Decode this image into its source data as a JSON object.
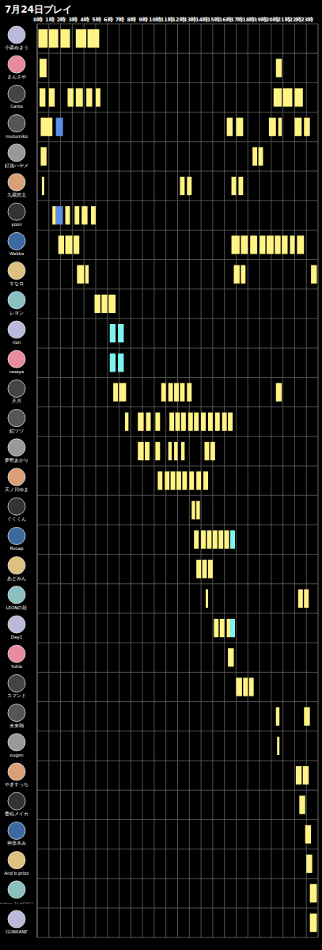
{
  "chart_data": {
    "type": "gantt",
    "title": "7月24日プレイ",
    "grid": true,
    "xlim": [
      0,
      24
    ],
    "xticks": [
      {
        "value": 0,
        "label": "0時"
      },
      {
        "value": 1,
        "label": "1時"
      },
      {
        "value": 2,
        "label": "2時"
      },
      {
        "value": 3,
        "label": "3時"
      },
      {
        "value": 4,
        "label": "4時"
      },
      {
        "value": 5,
        "label": "5時"
      },
      {
        "value": 6,
        "label": "6時"
      },
      {
        "value": 7,
        "label": "7時"
      },
      {
        "value": 8,
        "label": "8時"
      },
      {
        "value": 9,
        "label": "9時"
      },
      {
        "value": 10,
        "label": "10時"
      },
      {
        "value": 11,
        "label": "11時"
      },
      {
        "value": 12,
        "label": "12時"
      },
      {
        "value": 13,
        "label": "13時"
      },
      {
        "value": 14,
        "label": "14時"
      },
      {
        "value": 15,
        "label": "15時"
      },
      {
        "value": 16,
        "label": "16時"
      },
      {
        "value": 17,
        "label": "17時"
      },
      {
        "value": 18,
        "label": "18時"
      },
      {
        "value": 19,
        "label": "19時"
      },
      {
        "value": 20,
        "label": "20時"
      },
      {
        "value": 21,
        "label": "21時"
      },
      {
        "value": 22,
        "label": "22時"
      },
      {
        "value": 23,
        "label": "23時"
      }
    ],
    "rows": [
      {
        "name": "小森めまう",
        "blocks": [
          {
            "start": 0.1,
            "end": 0.9,
            "color": "#fff384"
          },
          {
            "start": 1.0,
            "end": 1.8,
            "color": "#fff384"
          },
          {
            "start": 2.0,
            "end": 2.8,
            "color": "#fff384"
          },
          {
            "start": 3.3,
            "end": 4.2,
            "color": "#fff384"
          },
          {
            "start": 4.3,
            "end": 5.3,
            "color": "#fff384"
          }
        ]
      },
      {
        "name": "まんさや",
        "blocks": [
          {
            "start": 0.2,
            "end": 0.8,
            "color": "#fff384"
          },
          {
            "start": 20.4,
            "end": 20.9,
            "color": "#fff384"
          }
        ]
      },
      {
        "name": "Caros",
        "blocks": [
          {
            "start": 0.2,
            "end": 0.7,
            "color": "#fff384"
          },
          {
            "start": 1.0,
            "end": 1.5,
            "color": "#fff384"
          },
          {
            "start": 2.6,
            "end": 3.1,
            "color": "#fff384"
          },
          {
            "start": 3.3,
            "end": 3.9,
            "color": "#fff384"
          },
          {
            "start": 4.2,
            "end": 4.7,
            "color": "#fff384"
          },
          {
            "start": 5.0,
            "end": 5.4,
            "color": "#fff384"
          },
          {
            "start": 20.2,
            "end": 20.9,
            "color": "#fff384"
          },
          {
            "start": 21.0,
            "end": 21.8,
            "color": "#fff384"
          },
          {
            "start": 22.0,
            "end": 22.7,
            "color": "#fff384"
          }
        ]
      },
      {
        "name": "mutumiko",
        "blocks": [
          {
            "start": 0.3,
            "end": 1.3,
            "color": "#fff384"
          },
          {
            "start": 1.6,
            "end": 2.2,
            "color": "#5b8fe6"
          },
          {
            "start": 16.2,
            "end": 16.7,
            "color": "#fff384"
          },
          {
            "start": 17.0,
            "end": 17.6,
            "color": "#fff384"
          },
          {
            "start": 19.8,
            "end": 20.4,
            "color": "#fff384"
          },
          {
            "start": 20.6,
            "end": 20.9,
            "color": "#fff384"
          },
          {
            "start": 22.0,
            "end": 22.6,
            "color": "#fff384"
          },
          {
            "start": 22.8,
            "end": 23.3,
            "color": "#fff384"
          }
        ]
      },
      {
        "name": "釘抜ハヤメ",
        "blocks": [
          {
            "start": 0.3,
            "end": 0.8,
            "color": "#fff384"
          },
          {
            "start": 18.4,
            "end": 18.8,
            "color": "#fff384"
          },
          {
            "start": 18.9,
            "end": 19.3,
            "color": "#fff384"
          }
        ]
      },
      {
        "name": "九蔵悠太",
        "blocks": [
          {
            "start": 0.4,
            "end": 0.6,
            "color": "#fff384"
          },
          {
            "start": 12.2,
            "end": 12.6,
            "color": "#fff384"
          },
          {
            "start": 12.8,
            "end": 13.2,
            "color": "#fff384"
          },
          {
            "start": 16.6,
            "end": 17.0,
            "color": "#fff384"
          },
          {
            "start": 17.2,
            "end": 17.6,
            "color": "#fff384"
          }
        ]
      },
      {
        "name": "yoon",
        "blocks": [
          {
            "start": 1.3,
            "end": 1.6,
            "color": "#fff384"
          },
          {
            "start": 1.6,
            "end": 2.2,
            "color": "#5b8fe6"
          },
          {
            "start": 2.4,
            "end": 2.8,
            "color": "#fff384"
          },
          {
            "start": 3.2,
            "end": 3.6,
            "color": "#fff384"
          },
          {
            "start": 3.8,
            "end": 4.3,
            "color": "#fff384"
          },
          {
            "start": 4.6,
            "end": 5.0,
            "color": "#fff384"
          }
        ]
      },
      {
        "name": "Wakka",
        "blocks": [
          {
            "start": 1.8,
            "end": 2.3,
            "color": "#fff384"
          },
          {
            "start": 2.4,
            "end": 3.0,
            "color": "#fff384"
          },
          {
            "start": 3.1,
            "end": 3.6,
            "color": "#fff384"
          },
          {
            "start": 16.6,
            "end": 17.3,
            "color": "#fff384"
          },
          {
            "start": 17.4,
            "end": 18.0,
            "color": "#fff384"
          },
          {
            "start": 18.2,
            "end": 18.8,
            "color": "#fff384"
          },
          {
            "start": 19.0,
            "end": 19.5,
            "color": "#fff384"
          },
          {
            "start": 19.6,
            "end": 20.2,
            "color": "#fff384"
          },
          {
            "start": 20.3,
            "end": 20.8,
            "color": "#fff384"
          },
          {
            "start": 20.9,
            "end": 21.4,
            "color": "#fff384"
          },
          {
            "start": 21.6,
            "end": 22.0,
            "color": "#fff384"
          },
          {
            "start": 22.2,
            "end": 22.8,
            "color": "#fff384"
          }
        ]
      },
      {
        "name": "すなロ",
        "blocks": [
          {
            "start": 3.4,
            "end": 4.0,
            "color": "#fff384"
          },
          {
            "start": 4.1,
            "end": 4.4,
            "color": "#fff384"
          },
          {
            "start": 16.8,
            "end": 17.3,
            "color": "#fff384"
          },
          {
            "start": 17.4,
            "end": 17.8,
            "color": "#fff384"
          },
          {
            "start": 23.4,
            "end": 23.9,
            "color": "#fff384"
          }
        ]
      },
      {
        "name": "レヨン",
        "blocks": [
          {
            "start": 4.9,
            "end": 5.4,
            "color": "#fff384"
          },
          {
            "start": 5.5,
            "end": 6.0,
            "color": "#fff384"
          },
          {
            "start": 6.1,
            "end": 6.7,
            "color": "#fff384"
          }
        ]
      },
      {
        "name": "rion",
        "blocks": [
          {
            "start": 6.2,
            "end": 6.7,
            "color": "#7ef2ee"
          },
          {
            "start": 6.9,
            "end": 7.4,
            "color": "#7ef2ee"
          }
        ]
      },
      {
        "name": "rasaya",
        "blocks": [
          {
            "start": 6.2,
            "end": 6.7,
            "color": "#7ef2ee"
          },
          {
            "start": 6.9,
            "end": 7.4,
            "color": "#7ef2ee"
          }
        ]
      },
      {
        "name": "天月",
        "blocks": [
          {
            "start": 6.5,
            "end": 6.9,
            "color": "#fff384"
          },
          {
            "start": 7.0,
            "end": 7.6,
            "color": "#fff384"
          },
          {
            "start": 10.6,
            "end": 11.0,
            "color": "#fff384"
          },
          {
            "start": 11.2,
            "end": 11.6,
            "color": "#fff384"
          },
          {
            "start": 11.7,
            "end": 12.1,
            "color": "#fff384"
          },
          {
            "start": 12.2,
            "end": 12.6,
            "color": "#fff384"
          },
          {
            "start": 12.8,
            "end": 13.2,
            "color": "#fff384"
          },
          {
            "start": 20.4,
            "end": 20.9,
            "color": "#fff384"
          }
        ]
      },
      {
        "name": "鏡ツツ",
        "blocks": [
          {
            "start": 7.5,
            "end": 7.8,
            "color": "#fff384"
          },
          {
            "start": 8.6,
            "end": 9.1,
            "color": "#fff384"
          },
          {
            "start": 9.3,
            "end": 9.7,
            "color": "#fff384"
          },
          {
            "start": 10.1,
            "end": 10.5,
            "color": "#fff384"
          },
          {
            "start": 11.3,
            "end": 11.7,
            "color": "#fff384"
          },
          {
            "start": 11.8,
            "end": 12.2,
            "color": "#fff384"
          },
          {
            "start": 12.3,
            "end": 12.7,
            "color": "#fff384"
          },
          {
            "start": 12.9,
            "end": 13.3,
            "color": "#fff384"
          },
          {
            "start": 13.4,
            "end": 13.8,
            "color": "#fff384"
          },
          {
            "start": 14.0,
            "end": 14.4,
            "color": "#fff384"
          },
          {
            "start": 14.6,
            "end": 15.0,
            "color": "#fff384"
          },
          {
            "start": 15.2,
            "end": 15.6,
            "color": "#fff384"
          },
          {
            "start": 15.8,
            "end": 16.2,
            "color": "#fff384"
          },
          {
            "start": 16.3,
            "end": 16.7,
            "color": "#fff384"
          }
        ]
      },
      {
        "name": "夢野あかり",
        "blocks": [
          {
            "start": 8.6,
            "end": 9.1,
            "color": "#fff384"
          },
          {
            "start": 9.2,
            "end": 9.6,
            "color": "#fff384"
          },
          {
            "start": 10.1,
            "end": 10.5,
            "color": "#fff384"
          },
          {
            "start": 11.2,
            "end": 11.5,
            "color": "#fff384"
          },
          {
            "start": 11.7,
            "end": 12.0,
            "color": "#fff384"
          },
          {
            "start": 12.3,
            "end": 12.6,
            "color": "#fff384"
          },
          {
            "start": 14.3,
            "end": 14.7,
            "color": "#fff384"
          },
          {
            "start": 14.8,
            "end": 15.2,
            "color": "#fff384"
          }
        ]
      },
      {
        "name": "天ノ川ゆま",
        "blocks": [
          {
            "start": 10.3,
            "end": 10.7,
            "color": "#fff384"
          },
          {
            "start": 10.9,
            "end": 11.3,
            "color": "#fff384"
          },
          {
            "start": 11.4,
            "end": 11.8,
            "color": "#fff384"
          },
          {
            "start": 11.9,
            "end": 12.3,
            "color": "#fff384"
          },
          {
            "start": 12.4,
            "end": 12.8,
            "color": "#fff384"
          },
          {
            "start": 13.0,
            "end": 13.4,
            "color": "#fff384"
          },
          {
            "start": 13.6,
            "end": 14.0,
            "color": "#fff384"
          },
          {
            "start": 14.2,
            "end": 14.6,
            "color": "#fff384"
          }
        ]
      },
      {
        "name": "ぐくくん",
        "blocks": [
          {
            "start": 13.2,
            "end": 13.5,
            "color": "#fff384"
          },
          {
            "start": 13.6,
            "end": 13.9,
            "color": "#fff384"
          }
        ]
      },
      {
        "name": "Recap",
        "blocks": [
          {
            "start": 13.4,
            "end": 13.8,
            "color": "#fff384"
          },
          {
            "start": 14.0,
            "end": 14.4,
            "color": "#fff384"
          },
          {
            "start": 14.5,
            "end": 14.9,
            "color": "#fff384"
          },
          {
            "start": 15.0,
            "end": 15.4,
            "color": "#fff384"
          },
          {
            "start": 15.5,
            "end": 15.9,
            "color": "#fff384"
          },
          {
            "start": 16.0,
            "end": 16.4,
            "color": "#fff384"
          },
          {
            "start": 16.5,
            "end": 16.9,
            "color": "#7ef2ee"
          }
        ]
      },
      {
        "name": "あどみん",
        "blocks": [
          {
            "start": 13.6,
            "end": 14.0,
            "color": "#fff384"
          },
          {
            "start": 14.1,
            "end": 14.5,
            "color": "#fff384"
          },
          {
            "start": 14.6,
            "end": 15.0,
            "color": "#fff384"
          }
        ]
      },
      {
        "name": "LEONの祖",
        "blocks": [
          {
            "start": 14.4,
            "end": 14.6,
            "color": "#fff384"
          },
          {
            "start": 22.3,
            "end": 22.7,
            "color": "#fff384"
          },
          {
            "start": 22.8,
            "end": 23.2,
            "color": "#fff384"
          }
        ]
      },
      {
        "name": "Day1",
        "blocks": [
          {
            "start": 15.1,
            "end": 15.5,
            "color": "#fff384"
          },
          {
            "start": 15.6,
            "end": 16.0,
            "color": "#fff384"
          },
          {
            "start": 16.2,
            "end": 16.5,
            "color": "#fff384"
          },
          {
            "start": 16.5,
            "end": 16.9,
            "color": "#7ef2ee"
          }
        ]
      },
      {
        "name": "Yukio",
        "blocks": [
          {
            "start": 16.3,
            "end": 16.8,
            "color": "#fff384"
          }
        ]
      },
      {
        "name": "スマンド",
        "blocks": [
          {
            "start": 17.0,
            "end": 17.5,
            "color": "#fff384"
          },
          {
            "start": 17.6,
            "end": 18.0,
            "color": "#fff384"
          },
          {
            "start": 18.1,
            "end": 18.5,
            "color": "#fff384"
          }
        ]
      },
      {
        "name": "未来翔",
        "blocks": [
          {
            "start": 20.4,
            "end": 20.7,
            "color": "#fff384"
          },
          {
            "start": 22.8,
            "end": 23.3,
            "color": "#fff384"
          }
        ]
      },
      {
        "name": "eugen",
        "blocks": [
          {
            "start": 20.5,
            "end": 20.7,
            "color": "#fff384"
          }
        ]
      },
      {
        "name": "やぎすっち",
        "blocks": [
          {
            "start": 22.1,
            "end": 22.6,
            "color": "#fff384"
          },
          {
            "start": 22.7,
            "end": 23.2,
            "color": "#fff384"
          }
        ]
      },
      {
        "name": "春絵メイカ",
        "blocks": [
          {
            "start": 22.4,
            "end": 22.9,
            "color": "#fff384"
          }
        ]
      },
      {
        "name": "神楽木み",
        "blocks": [
          {
            "start": 22.9,
            "end": 23.4,
            "color": "#fff384"
          }
        ]
      },
      {
        "name": "And b prize",
        "blocks": [
          {
            "start": 23.0,
            "end": 23.5,
            "color": "#fff384"
          }
        ]
      },
      {
        "name": "レベルシュ・ウイスパーハート",
        "blocks": [
          {
            "start": 23.3,
            "end": 23.9,
            "color": "#fff384"
          }
        ]
      },
      {
        "name": "GONKANE",
        "blocks": [
          {
            "start": 23.3,
            "end": 23.9,
            "color": "#fff384"
          }
        ]
      }
    ]
  }
}
